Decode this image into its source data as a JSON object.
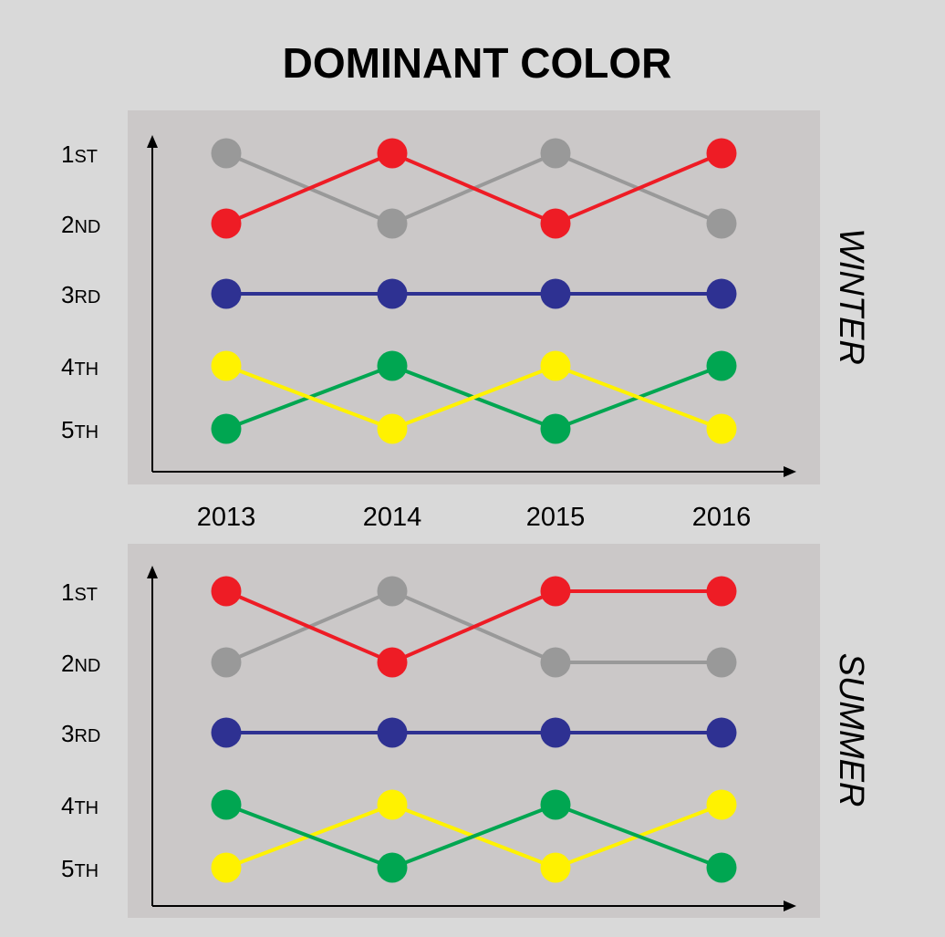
{
  "chart_data": {
    "type": "line",
    "title": "DOMINANT COLOR",
    "x": [
      "2013",
      "2014",
      "2015",
      "2016"
    ],
    "rank_labels": [
      {
        "num": "1",
        "suffix": "ST"
      },
      {
        "num": "2",
        "suffix": "ND"
      },
      {
        "num": "3",
        "suffix": "RD"
      },
      {
        "num": "4",
        "suffix": "TH"
      },
      {
        "num": "5",
        "suffix": "TH"
      }
    ],
    "y_order": "rank 1 at top, rank 5 at bottom",
    "grid": false,
    "panels": [
      {
        "label": "WINTER",
        "series": [
          {
            "color": "#999999",
            "values": [
              1,
              2,
              1,
              2
            ]
          },
          {
            "color": "#ee1c25",
            "values": [
              2,
              1,
              2,
              1
            ]
          },
          {
            "color": "#2e3192",
            "values": [
              3,
              3,
              3,
              3
            ]
          },
          {
            "color": "#00a651",
            "values": [
              5,
              4,
              5,
              4
            ]
          },
          {
            "color": "#fff200",
            "values": [
              4,
              5,
              4,
              5
            ]
          }
        ]
      },
      {
        "label": "SUMMER",
        "series": [
          {
            "color": "#999999",
            "values": [
              2,
              1,
              2,
              2
            ]
          },
          {
            "color": "#ee1c25",
            "values": [
              1,
              2,
              1,
              1
            ]
          },
          {
            "color": "#2e3192",
            "values": [
              3,
              3,
              3,
              3
            ]
          },
          {
            "color": "#fff200",
            "values": [
              5,
              4,
              5,
              4
            ]
          },
          {
            "color": "#00a651",
            "values": [
              4,
              5,
              4,
              5
            ]
          }
        ]
      }
    ]
  },
  "colors": {
    "page_background": "#d9d9d9",
    "panel_background": "#cbc8c8",
    "axis": "#000000"
  }
}
